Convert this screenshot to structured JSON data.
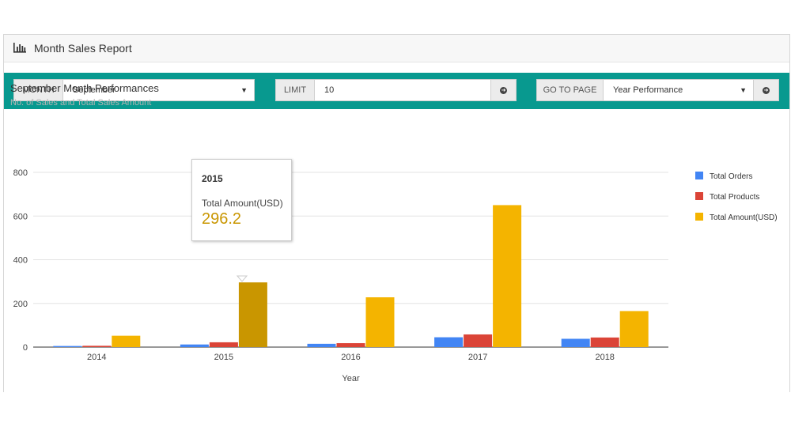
{
  "panel": {
    "title": "Month Sales Report",
    "icon": "bar-chart-icon"
  },
  "toolbar": {
    "background": "#08998f",
    "month_label": "MONTH",
    "month_value": "September",
    "limit_label": "LIMIT",
    "limit_value": "10",
    "goto_label": "GO TO PAGE",
    "goto_value": "Year Performance",
    "go_icon": "circle-arrow-right-icon"
  },
  "chart_data": {
    "type": "bar",
    "title": "September Month Performances",
    "subtitle": "No. of Sales and Total Sales Amount",
    "xlabel": "Year",
    "ylabel": "",
    "categories": [
      "2014",
      "2015",
      "2016",
      "2017",
      "2018"
    ],
    "ylim": [
      0,
      800
    ],
    "yticks": [
      0,
      200,
      400,
      600,
      800
    ],
    "grid": true,
    "legend_position": "right",
    "series": [
      {
        "name": "Total Orders",
        "color": "#4285f4",
        "values": [
          5,
          12,
          15,
          45,
          38
        ]
      },
      {
        "name": "Total Products",
        "color": "#db4437",
        "values": [
          6,
          22,
          18,
          58,
          44
        ]
      },
      {
        "name": "Total Amount(USD)",
        "color": "#f4b400",
        "values": [
          52,
          296.2,
          228,
          650,
          165
        ]
      }
    ],
    "tooltip": {
      "category": "2015",
      "series": "Total Amount(USD)",
      "value": "296.2"
    }
  }
}
